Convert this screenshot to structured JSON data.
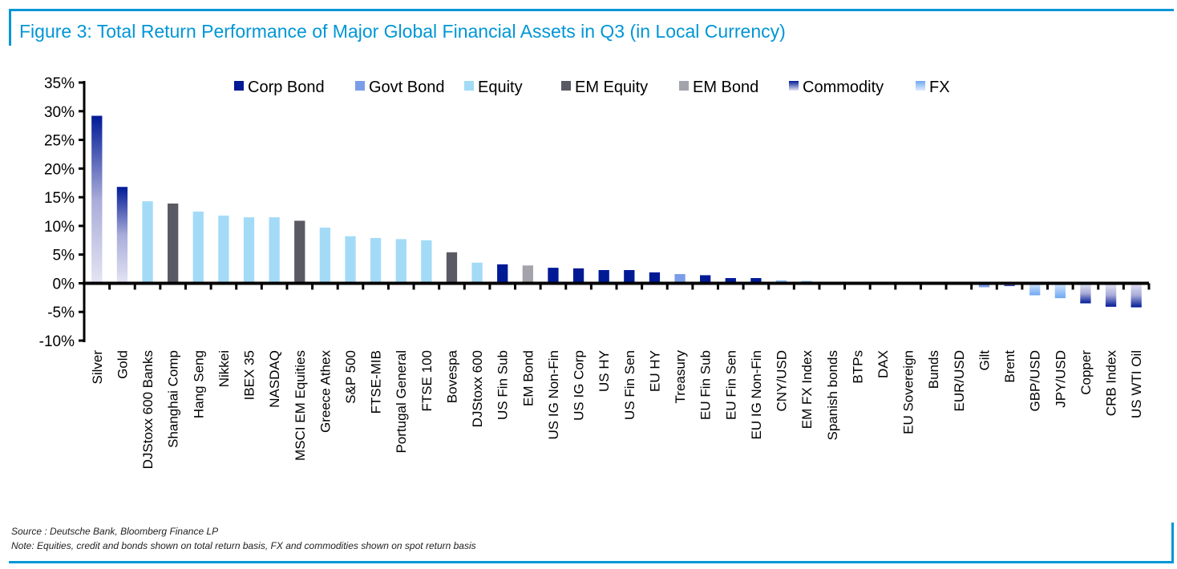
{
  "figure": {
    "title": "Figure 3: Total Return Performance of Major Global Financial Assets in Q3 (in Local Currency)",
    "source": "Source : Deutsche Bank, Bloomberg Finance LP",
    "note": "Note: Equities, credit and bonds shown on total return basis, FX and commodities shown on spot return basis",
    "accent_color": "#0096d6"
  },
  "chart_data": {
    "type": "bar",
    "title": "Figure 3: Total Return Performance of Major Global Financial Assets in Q3 (in Local Currency)",
    "xlabel": "",
    "ylabel": "",
    "ylim": [
      -10,
      35
    ],
    "yticks": [
      35,
      30,
      25,
      20,
      15,
      10,
      5,
      0,
      -5,
      -10
    ],
    "ytick_labels": [
      "35%",
      "30%",
      "25%",
      "20%",
      "15%",
      "10%",
      "5%",
      "0%",
      "-5%",
      "-10%"
    ],
    "grid": false,
    "legend_position": "top",
    "legend": [
      {
        "name": "Corp Bond",
        "color": "#001a96",
        "style": "solid"
      },
      {
        "name": "Govt Bond",
        "color": "#7b9de8",
        "style": "solid"
      },
      {
        "name": "Equity",
        "color": "#a3dbf7",
        "style": "solid"
      },
      {
        "name": "EM Equity",
        "color": "#5a5a64",
        "style": "solid"
      },
      {
        "name": "EM Bond",
        "color": "#a3a3ab",
        "style": "solid"
      },
      {
        "name": "Commodity",
        "color": "#001a96",
        "color2": "#e2e2f2",
        "style": "gradient"
      },
      {
        "name": "FX",
        "color": "#6fa8f5",
        "color2": "#d6e6fb",
        "style": "gradient"
      }
    ],
    "categories": [
      "Silver",
      "Gold",
      "DJStoxx 600 Banks",
      "Shanghai Comp",
      "Hang Seng",
      "Nikkei",
      "IBEX 35",
      "NASDAQ",
      "MSCI EM Equities",
      "Greece Athex",
      "S&P 500",
      "FTSE-MIB",
      "Portugal General",
      "FTSE 100",
      "Bovespa",
      "DJStoxx 600",
      "US Fin Sub",
      "EM Bond",
      "US IG Non-Fin",
      "US IG Corp",
      "US HY",
      "US Fin Sen",
      "EU HY",
      "Treasury",
      "EU Fin Sub",
      "EU Fin Sen",
      "EU IG Non-Fin",
      "CNY/USD",
      "EM FX Index",
      "Spanish bonds",
      "BTPs",
      "DAX",
      "EU Sovereign",
      "Bunds",
      "EUR/USD",
      "Gilt",
      "Brent",
      "GBP/USD",
      "JPY/USD",
      "Copper",
      "CRB Index",
      "US WTI Oil"
    ],
    "values": [
      29.2,
      16.8,
      14.3,
      13.9,
      12.5,
      11.8,
      11.5,
      11.5,
      10.9,
      9.7,
      8.2,
      7.9,
      7.7,
      7.5,
      5.4,
      3.6,
      3.3,
      3.1,
      2.7,
      2.6,
      2.3,
      2.3,
      1.9,
      1.6,
      1.4,
      0.9,
      0.9,
      0.5,
      0.4,
      0.2,
      0.0,
      0.0,
      0.0,
      -0.2,
      -0.2,
      -0.7,
      -0.5,
      -2.1,
      -2.6,
      -3.5,
      -4.1,
      -4.2
    ],
    "asset_classes": [
      "Commodity",
      "Commodity",
      "Equity",
      "EM Equity",
      "Equity",
      "Equity",
      "Equity",
      "Equity",
      "EM Equity",
      "Equity",
      "Equity",
      "Equity",
      "Equity",
      "Equity",
      "EM Equity",
      "Equity",
      "Corp Bond",
      "EM Bond",
      "Corp Bond",
      "Corp Bond",
      "Corp Bond",
      "Corp Bond",
      "Corp Bond",
      "Govt Bond",
      "Corp Bond",
      "Corp Bond",
      "Corp Bond",
      "FX",
      "FX",
      "Govt Bond",
      "Govt Bond",
      "Equity",
      "Govt Bond",
      "Govt Bond",
      "FX",
      "Govt Bond",
      "Commodity",
      "FX",
      "FX",
      "Commodity",
      "Commodity",
      "Commodity"
    ]
  }
}
